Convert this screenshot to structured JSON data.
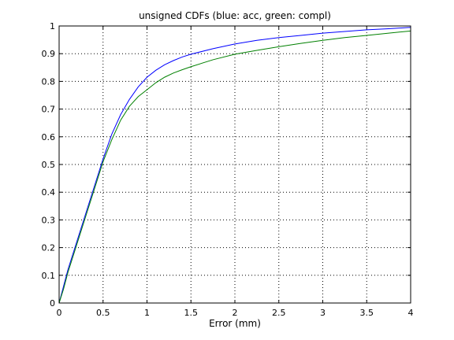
{
  "chart_data": {
    "type": "line",
    "title": "unsigned CDFs (blue: acc, green: compl)",
    "xlabel": "Error (mm)",
    "ylabel": "",
    "xlim": [
      0,
      4
    ],
    "ylim": [
      0,
      1
    ],
    "grid": true,
    "grid_style": "dotted",
    "x_ticks": [
      "0",
      "0.5",
      "1",
      "1.5",
      "2",
      "2.5",
      "3",
      "3.5",
      "4"
    ],
    "y_ticks": [
      "0",
      "0.1",
      "0.2",
      "0.3",
      "0.4",
      "0.5",
      "0.6",
      "0.7",
      "0.8",
      "0.9",
      "1"
    ],
    "series": [
      {
        "color": "#0000ff",
        "x": [
          0,
          0.05,
          0.1,
          0.2,
          0.3,
          0.4,
          0.5,
          0.6,
          0.7,
          0.8,
          0.9,
          1.0,
          1.1,
          1.2,
          1.3,
          1.4,
          1.5,
          1.75,
          2.0,
          2.25,
          2.5,
          2.75,
          3.0,
          3.25,
          3.5,
          3.75,
          4.0
        ],
        "y": [
          0,
          0.06,
          0.12,
          0.22,
          0.32,
          0.42,
          0.52,
          0.61,
          0.68,
          0.735,
          0.78,
          0.815,
          0.84,
          0.86,
          0.875,
          0.888,
          0.898,
          0.918,
          0.935,
          0.948,
          0.958,
          0.966,
          0.974,
          0.98,
          0.986,
          0.99,
          0.995
        ]
      },
      {
        "color": "#008000",
        "x": [
          0,
          0.05,
          0.1,
          0.2,
          0.3,
          0.4,
          0.5,
          0.6,
          0.7,
          0.8,
          0.9,
          1.0,
          1.1,
          1.2,
          1.3,
          1.4,
          1.5,
          1.75,
          2.0,
          2.25,
          2.5,
          2.75,
          3.0,
          3.25,
          3.5,
          3.75,
          4.0
        ],
        "y": [
          0,
          0.05,
          0.11,
          0.21,
          0.31,
          0.41,
          0.51,
          0.59,
          0.66,
          0.71,
          0.745,
          0.77,
          0.795,
          0.815,
          0.83,
          0.842,
          0.853,
          0.878,
          0.898,
          0.912,
          0.925,
          0.937,
          0.948,
          0.958,
          0.966,
          0.974,
          0.982
        ]
      }
    ]
  }
}
